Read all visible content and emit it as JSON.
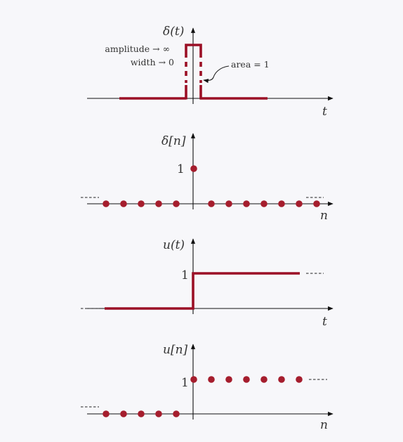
{
  "colors": {
    "signal": "#9b1026",
    "dot": "#a51d2d",
    "axis": "#111111",
    "background": "#f7f7fa"
  },
  "panels": {
    "delta_ct": {
      "ylabel": "δ(t)",
      "xlabel": "t",
      "note_amplitude": "amplitude → ∞",
      "note_width": "width → 0",
      "note_area": "area = 1"
    },
    "delta_dt": {
      "ylabel": "δ[n]",
      "xlabel": "n",
      "tick_one": "1",
      "values": [
        0,
        0,
        0,
        0,
        0,
        1,
        0,
        0,
        0,
        0,
        0,
        0,
        0
      ]
    },
    "step_ct": {
      "ylabel": "u(t)",
      "xlabel": "t",
      "tick_one": "1"
    },
    "step_dt": {
      "ylabel": "u[n]",
      "xlabel": "n",
      "tick_one": "1",
      "values": [
        0,
        0,
        0,
        0,
        0,
        1,
        1,
        1,
        1,
        1,
        1,
        1
      ]
    }
  }
}
